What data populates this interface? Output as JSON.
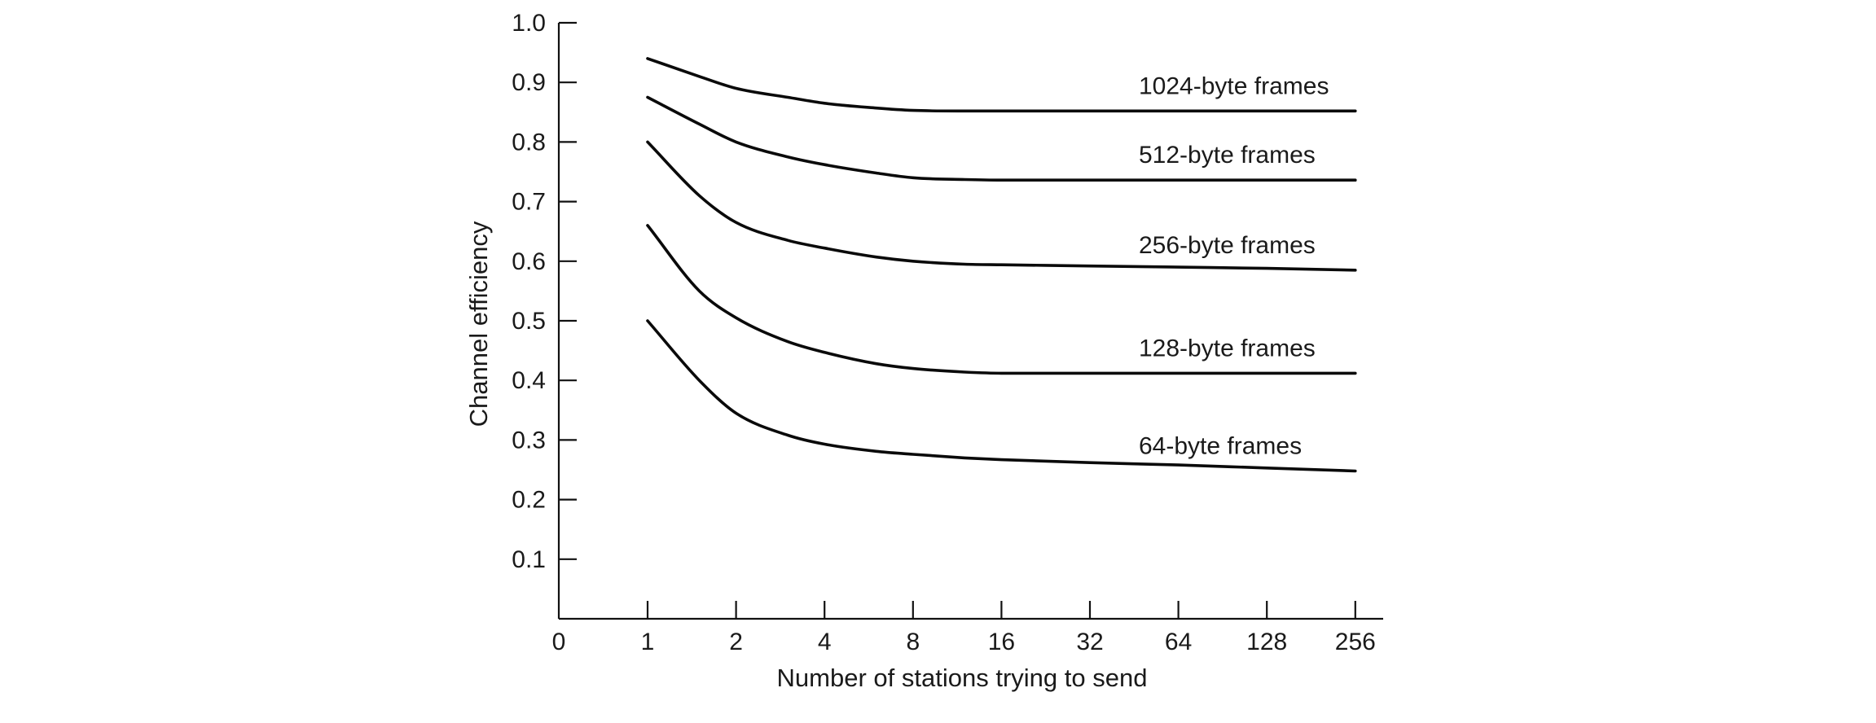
{
  "chart_data": {
    "type": "line",
    "xlabel": "Number of stations trying to send",
    "ylabel": "Channel efficiency",
    "x_scale": "log2",
    "x_ticks": [
      "0",
      "1",
      "2",
      "4",
      "8",
      "16",
      "32",
      "64",
      "128",
      "256"
    ],
    "y_ticks": [
      "1.0",
      "0.9",
      "0.8",
      "0.7",
      "0.6",
      "0.5",
      "0.4",
      "0.3",
      "0.2",
      "0.1"
    ],
    "ylim": [
      0,
      1.0
    ],
    "grid": false,
    "legend": "labels placed on series at right",
    "x": [
      1,
      1.5,
      2,
      3,
      4,
      6,
      8,
      12,
      16,
      32,
      64,
      128,
      256
    ],
    "series": [
      {
        "name": "1024-byte frames",
        "values": [
          0.94,
          0.91,
          0.89,
          0.875,
          0.865,
          0.857,
          0.853,
          0.852,
          0.852,
          0.852,
          0.852,
          0.852,
          0.852
        ]
      },
      {
        "name": "512-byte frames",
        "values": [
          0.875,
          0.83,
          0.8,
          0.775,
          0.762,
          0.748,
          0.74,
          0.737,
          0.736,
          0.736,
          0.736,
          0.736,
          0.736
        ]
      },
      {
        "name": "256-byte frames",
        "values": [
          0.8,
          0.71,
          0.665,
          0.635,
          0.622,
          0.607,
          0.6,
          0.595,
          0.594,
          0.592,
          0.59,
          0.588,
          0.585
        ]
      },
      {
        "name": "128-byte frames",
        "values": [
          0.66,
          0.55,
          0.505,
          0.465,
          0.447,
          0.428,
          0.42,
          0.414,
          0.412,
          0.412,
          0.412,
          0.412,
          0.412
        ]
      },
      {
        "name": "64-byte frames",
        "values": [
          0.5,
          0.4,
          0.345,
          0.308,
          0.293,
          0.281,
          0.276,
          0.27,
          0.267,
          0.262,
          0.258,
          0.253,
          0.248
        ]
      }
    ]
  }
}
